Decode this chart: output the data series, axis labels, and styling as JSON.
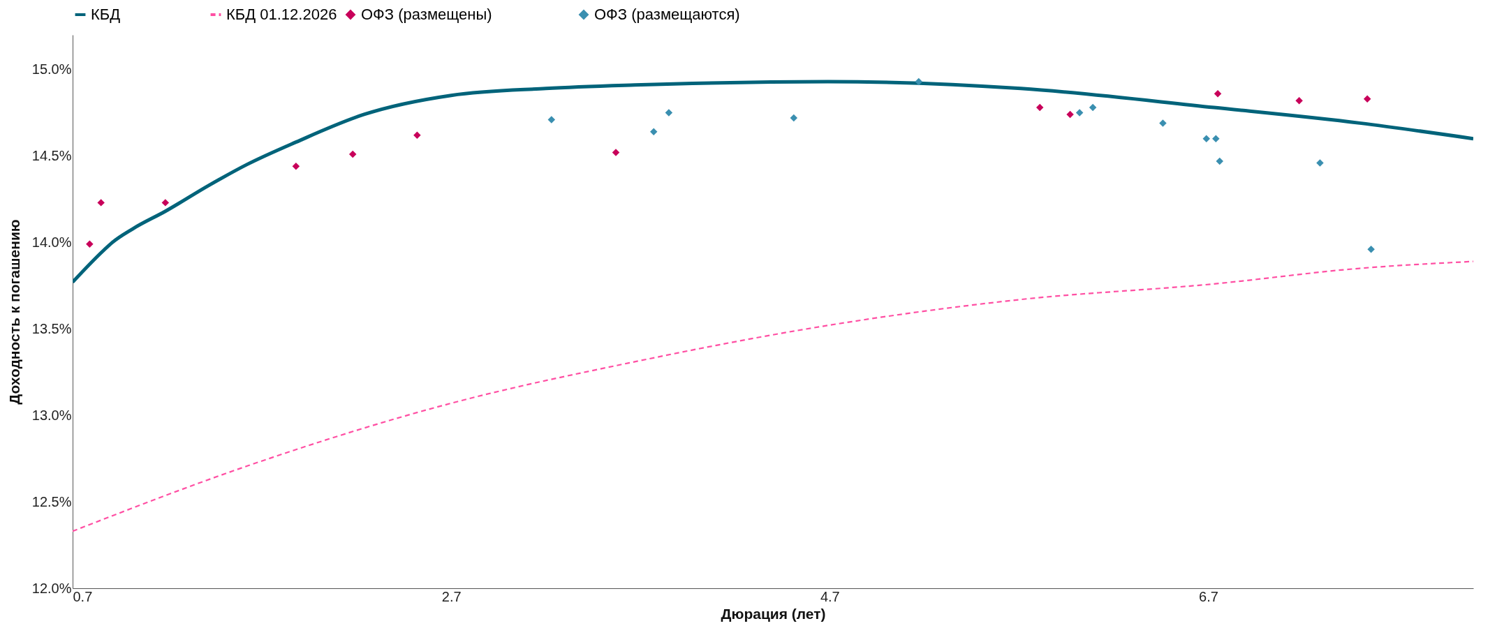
{
  "chart_data": {
    "type": "scatter",
    "xlabel": "Дюрация (лет)",
    "ylabel": "Доходность к погашению",
    "xlim": [
      0.7,
      8.1
    ],
    "ylim": [
      12.0,
      15.2
    ],
    "xticks": [
      0.7,
      2.7,
      4.7,
      6.7
    ],
    "yticks": [
      {
        "value": 12.0,
        "label": "12.0%"
      },
      {
        "value": 12.5,
        "label": "12.5%"
      },
      {
        "value": 13.0,
        "label": "13.0%"
      },
      {
        "value": 13.5,
        "label": "13.5%"
      },
      {
        "value": 14.0,
        "label": "14.0%"
      },
      {
        "value": 14.5,
        "label": "14.5%"
      },
      {
        "value": 15.0,
        "label": "15.0%"
      }
    ],
    "grid": false,
    "legend": "top",
    "series": [
      {
        "name": "ОФЗ (размещены)",
        "marker": "diamond",
        "color": "#c8005a",
        "x": [
          0.79,
          0.85,
          1.19,
          1.88,
          2.18,
          2.52,
          3.57,
          5.81,
          5.97,
          6.75,
          7.18,
          7.54
        ],
        "values": [
          13.99,
          14.23,
          14.23,
          14.44,
          14.51,
          14.62,
          14.52,
          14.78,
          14.74,
          14.86,
          14.82,
          14.83
        ]
      },
      {
        "name": "ОФЗ (размещаются)",
        "marker": "diamond",
        "color": "#3a8fb0",
        "x": [
          3.23,
          3.77,
          3.85,
          4.51,
          5.17,
          6.02,
          6.09,
          6.46,
          6.69,
          6.74,
          6.76,
          7.29,
          7.56
        ],
        "values": [
          14.71,
          14.64,
          14.75,
          14.72,
          14.93,
          14.75,
          14.78,
          14.69,
          14.6,
          14.6,
          14.47,
          14.46,
          13.96
        ]
      },
      {
        "name": "КБД",
        "type": "line",
        "line_style": "solid",
        "color": "#00637a",
        "x": [
          0.7,
          0.86,
          0.91,
          1.02,
          1.19,
          1.42,
          1.62,
          1.88,
          2.24,
          2.7,
          3.2,
          3.67,
          4.69,
          5.71,
          6.73,
          7.5,
          8.1
        ],
        "values": [
          13.77,
          13.95,
          14.0,
          14.08,
          14.18,
          14.33,
          14.45,
          14.58,
          14.74,
          14.85,
          14.89,
          14.91,
          14.93,
          14.89,
          14.78,
          14.69,
          14.6
        ]
      },
      {
        "name": "КБД 01.12.2026",
        "type": "line",
        "line_style": "dashed",
        "color": "#ff4fa3",
        "x": [
          0.7,
          1.63,
          2.7,
          3.67,
          4.69,
          5.71,
          6.73,
          7.5,
          8.1
        ],
        "values": [
          12.33,
          12.71,
          13.07,
          13.31,
          13.52,
          13.67,
          13.76,
          13.85,
          13.89
        ]
      }
    ]
  }
}
